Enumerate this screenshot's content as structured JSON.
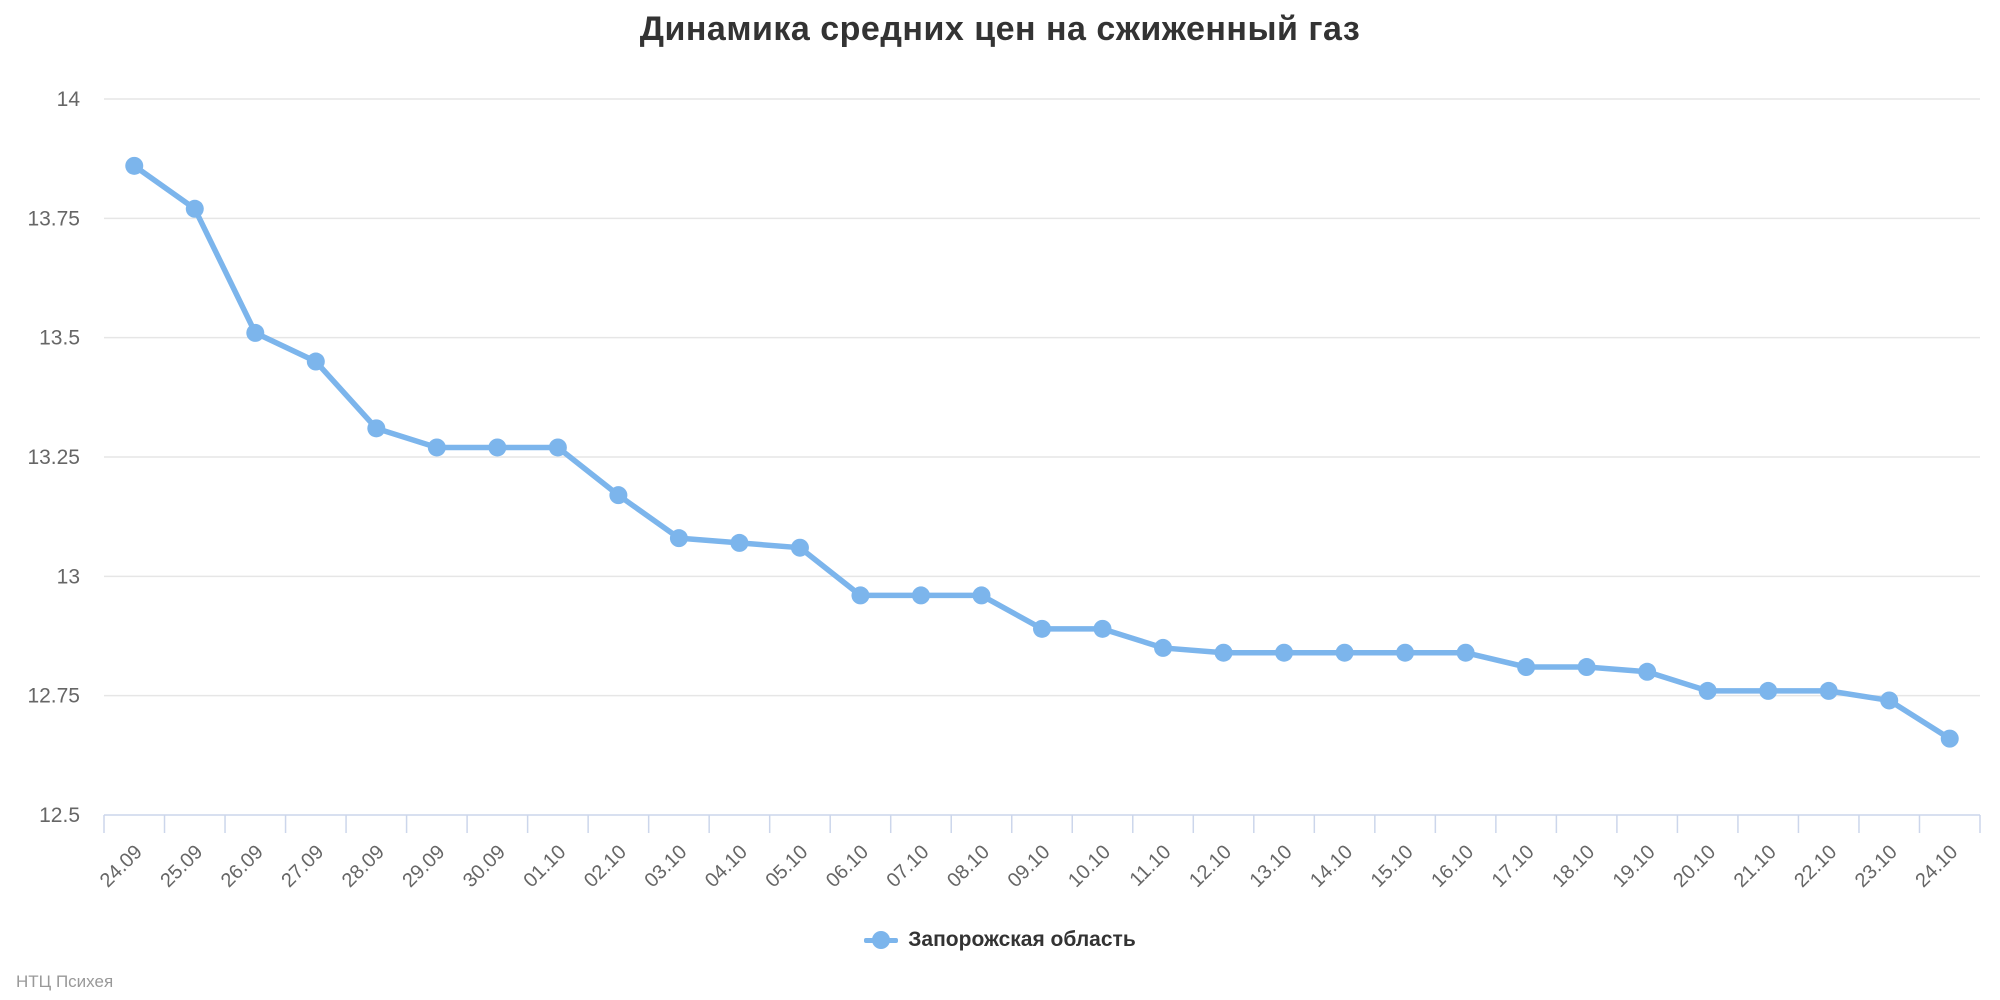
{
  "page": {
    "title": "Динамика средних цен на сжиженный газ",
    "credits": "НТЦ Психея"
  },
  "colors": {
    "series": "#7cb5ec",
    "grid": "#e6e6e6",
    "axis": "#ccd6eb",
    "title_text": "#333333",
    "axis_label_text": "#666666",
    "legend_text": "#333333",
    "credits_text": "#999999",
    "background": "#ffffff"
  },
  "legend": {
    "marker_icon": "line-dot-icon",
    "position": "bottom-center"
  },
  "chart_data": {
    "type": "line",
    "title": "Динамика средних цен на сжиженный газ",
    "xlabel": "",
    "ylabel": "",
    "ylim": [
      12.5,
      14
    ],
    "yticks": [
      12.5,
      12.75,
      13,
      13.25,
      13.5,
      13.75,
      14
    ],
    "grid": true,
    "legend_position": "bottom",
    "categories": [
      "24.09",
      "25.09",
      "26.09",
      "27.09",
      "28.09",
      "29.09",
      "30.09",
      "01.10",
      "02.10",
      "03.10",
      "04.10",
      "05.10",
      "06.10",
      "07.10",
      "08.10",
      "09.10",
      "10.10",
      "11.10",
      "12.10",
      "13.10",
      "14.10",
      "15.10",
      "16.10",
      "17.10",
      "18.10",
      "19.10",
      "20.10",
      "21.10",
      "22.10",
      "23.10",
      "24.10"
    ],
    "series": [
      {
        "name": "Запорожская область",
        "color": "#7cb5ec",
        "marker": "circle",
        "values": [
          13.86,
          13.77,
          13.51,
          13.45,
          13.31,
          13.27,
          13.27,
          13.27,
          13.17,
          13.08,
          13.07,
          13.06,
          12.96,
          12.96,
          12.96,
          12.89,
          12.89,
          12.85,
          12.84,
          12.84,
          12.84,
          12.84,
          12.84,
          12.81,
          12.81,
          12.8,
          12.76,
          12.76,
          12.76,
          12.74,
          12.66
        ]
      }
    ]
  }
}
